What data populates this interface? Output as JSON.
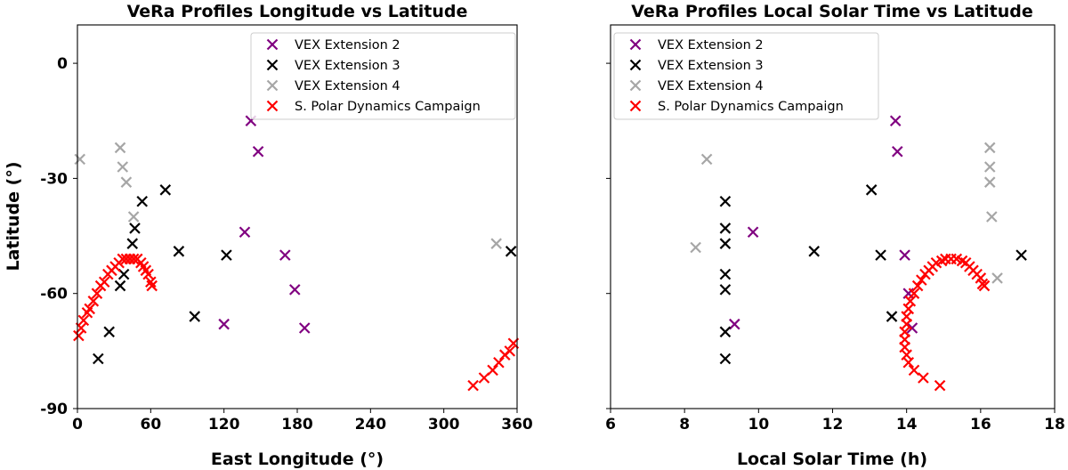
{
  "chart_data": [
    {
      "type": "scatter",
      "title": "VeRa Profiles Longitude vs Latitude",
      "xlabel": "East Longitude (°)",
      "ylabel": "Latitude (°)",
      "xlim": [
        0,
        360
      ],
      "ylim": [
        -90,
        10
      ],
      "xticks": [
        0,
        60,
        120,
        180,
        240,
        300,
        360
      ],
      "yticks": [
        0,
        -30,
        -60,
        -90
      ],
      "xtick_labels": [
        "0",
        "60",
        "120",
        "180",
        "240",
        "300",
        "360"
      ],
      "ytick_labels": [
        "0",
        "-30",
        "-60",
        "-90"
      ],
      "grid": false,
      "legend": "top-right",
      "series": [
        {
          "name": "VEX Extension 2",
          "color": "#800080",
          "points": [
            [
              142,
              -15
            ],
            [
              148,
              -23
            ],
            [
              137,
              -44
            ],
            [
              170,
              -50
            ],
            [
              178,
              -59
            ],
            [
              186,
              -69
            ],
            [
              120,
              -68
            ]
          ]
        },
        {
          "name": "VEX Extension 3",
          "color": "#000000",
          "points": [
            [
              72,
              -33
            ],
            [
              53,
              -36
            ],
            [
              47,
              -43
            ],
            [
              45,
              -47
            ],
            [
              38,
              -55
            ],
            [
              35,
              -58
            ],
            [
              83,
              -49
            ],
            [
              122,
              -50
            ],
            [
              96,
              -66
            ],
            [
              26,
              -70
            ],
            [
              17,
              -77
            ],
            [
              355,
              -49
            ]
          ]
        },
        {
          "name": "VEX Extension 4",
          "color": "#a6a6a6",
          "points": [
            [
              2,
              -25
            ],
            [
              35,
              -22
            ],
            [
              37,
              -27
            ],
            [
              40,
              -31
            ],
            [
              46,
              -40
            ],
            [
              343,
              -47
            ]
          ]
        },
        {
          "name": "S. Polar Dynamics Campaign",
          "color": "#ff0000",
          "points": [
            [
              1,
              -71
            ],
            [
              3,
              -69
            ],
            [
              5,
              -67
            ],
            [
              8,
              -65
            ],
            [
              10,
              -64
            ],
            [
              13,
              -62
            ],
            [
              16,
              -60
            ],
            [
              19,
              -58
            ],
            [
              22,
              -57
            ],
            [
              25,
              -55
            ],
            [
              28,
              -54
            ],
            [
              31,
              -53
            ],
            [
              34,
              -52
            ],
            [
              37,
              -51
            ],
            [
              40,
              -51
            ],
            [
              43,
              -51
            ],
            [
              46,
              -51
            ],
            [
              49,
              -51
            ],
            [
              52,
              -52
            ],
            [
              54,
              -53
            ],
            [
              56,
              -54
            ],
            [
              58,
              -55
            ],
            [
              60,
              -57
            ],
            [
              61,
              -58
            ],
            [
              324,
              -84
            ],
            [
              333,
              -82
            ],
            [
              340,
              -80
            ],
            [
              345,
              -78
            ],
            [
              350,
              -76
            ],
            [
              354,
              -75
            ],
            [
              357,
              -73
            ]
          ]
        }
      ]
    },
    {
      "type": "scatter",
      "title": "VeRa Profiles Local Solar Time vs Latitude",
      "xlabel": "Local Solar Time (h)",
      "ylabel": "",
      "xlim": [
        6,
        18
      ],
      "ylim": [
        -90,
        10
      ],
      "xticks": [
        6,
        8,
        10,
        12,
        14,
        16,
        18
      ],
      "yticks": [
        0,
        -30,
        -60,
        -90
      ],
      "xtick_labels": [
        "6",
        "8",
        "10",
        "12",
        "14",
        "16",
        "18"
      ],
      "grid": false,
      "legend": "top-left",
      "series": [
        {
          "name": "VEX Extension 2",
          "color": "#800080",
          "points": [
            [
              13.7,
              -15
            ],
            [
              13.75,
              -23
            ],
            [
              9.85,
              -44
            ],
            [
              13.95,
              -50
            ],
            [
              14.05,
              -60
            ],
            [
              9.35,
              -68
            ],
            [
              14.15,
              -69
            ]
          ]
        },
        {
          "name": "VEX Extension 3",
          "color": "#000000",
          "points": [
            [
              13.05,
              -33
            ],
            [
              9.1,
              -36
            ],
            [
              9.1,
              -43
            ],
            [
              9.1,
              -47
            ],
            [
              11.5,
              -49
            ],
            [
              13.3,
              -50
            ],
            [
              9.1,
              -55
            ],
            [
              9.1,
              -59
            ],
            [
              13.6,
              -66
            ],
            [
              9.1,
              -70
            ],
            [
              9.1,
              -77
            ],
            [
              17.1,
              -50
            ]
          ]
        },
        {
          "name": "VEX Extension 4",
          "color": "#a6a6a6",
          "points": [
            [
              8.6,
              -25
            ],
            [
              8.3,
              -48
            ],
            [
              16.25,
              -22
            ],
            [
              16.25,
              -27
            ],
            [
              16.25,
              -31
            ],
            [
              16.3,
              -40
            ],
            [
              16.45,
              -56
            ]
          ]
        },
        {
          "name": "S. Polar Dynamics Campaign",
          "color": "#ff0000",
          "points": [
            [
              14.9,
              -84
            ],
            [
              14.45,
              -82
            ],
            [
              14.2,
              -80
            ],
            [
              14.05,
              -78
            ],
            [
              14,
              -76
            ],
            [
              13.95,
              -74
            ],
            [
              13.95,
              -72
            ],
            [
              13.95,
              -70
            ],
            [
              14,
              -68
            ],
            [
              14,
              -66
            ],
            [
              14.05,
              -64
            ],
            [
              14.1,
              -62
            ],
            [
              14.2,
              -60
            ],
            [
              14.3,
              -58
            ],
            [
              14.4,
              -56.5
            ],
            [
              14.5,
              -55
            ],
            [
              14.6,
              -54
            ],
            [
              14.7,
              -53
            ],
            [
              14.8,
              -52
            ],
            [
              14.95,
              -51.5
            ],
            [
              15.05,
              -51
            ],
            [
              15.2,
              -51
            ],
            [
              15.35,
              -51
            ],
            [
              15.5,
              -51.5
            ],
            [
              15.6,
              -52
            ],
            [
              15.7,
              -53
            ],
            [
              15.8,
              -54
            ],
            [
              15.9,
              -55
            ],
            [
              16,
              -56
            ],
            [
              16.05,
              -57.5
            ],
            [
              16.1,
              -58
            ]
          ]
        }
      ]
    }
  ]
}
